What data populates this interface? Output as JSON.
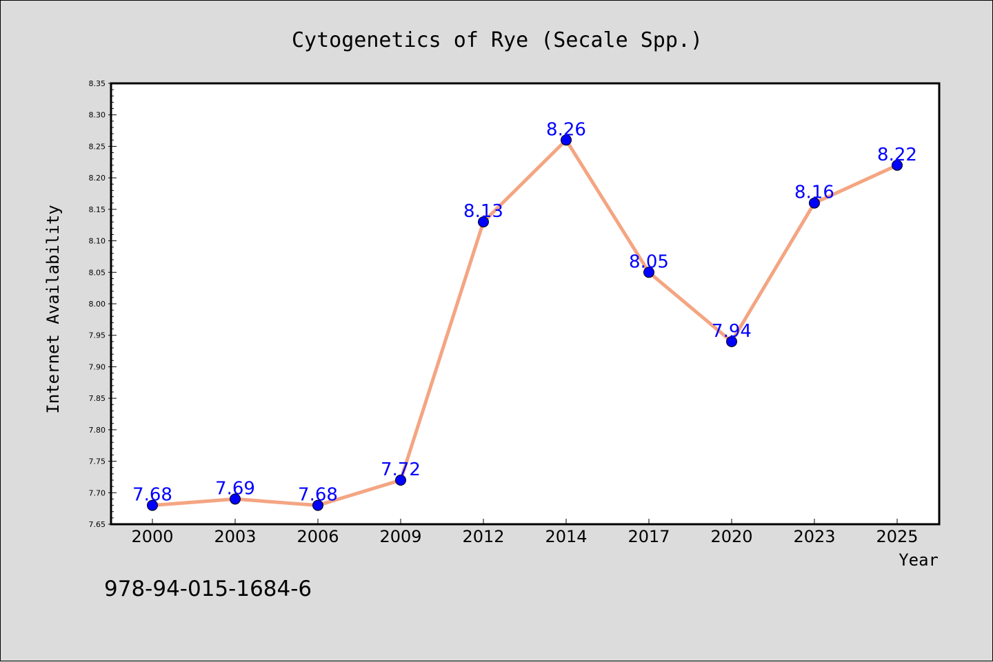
{
  "chart_data": {
    "type": "line",
    "title": "Cytogenetics of Rye (Secale Spp.)",
    "xlabel": "Year",
    "ylabel": "Internet Availability",
    "categories": [
      "2000",
      "2003",
      "2006",
      "2009",
      "2012",
      "2014",
      "2017",
      "2020",
      "2023",
      "2025"
    ],
    "values": [
      7.68,
      7.69,
      7.68,
      7.72,
      8.13,
      8.26,
      8.05,
      7.94,
      8.16,
      8.22
    ],
    "data_labels": [
      "7.68",
      "7.69",
      "7.68",
      "7.72",
      "8.13",
      "8.26",
      "8.05",
      "7.94",
      "8.16",
      "8.22"
    ],
    "ylim": [
      7.65,
      8.35
    ],
    "yticks": [
      "7.65",
      "7.70",
      "7.75",
      "7.80",
      "7.85",
      "7.90",
      "7.95",
      "8.00",
      "8.05",
      "8.10",
      "8.15",
      "8.20",
      "8.25",
      "8.30",
      "8.35"
    ],
    "grid": false,
    "legend": "none",
    "colors": {
      "line": "#f4a582",
      "marker": "#0000ff",
      "data_label": "#0000ff",
      "plot_background": "#ffffff",
      "figure_background": "#dcdcdc"
    }
  },
  "footnote": "978-94-015-1684-6"
}
